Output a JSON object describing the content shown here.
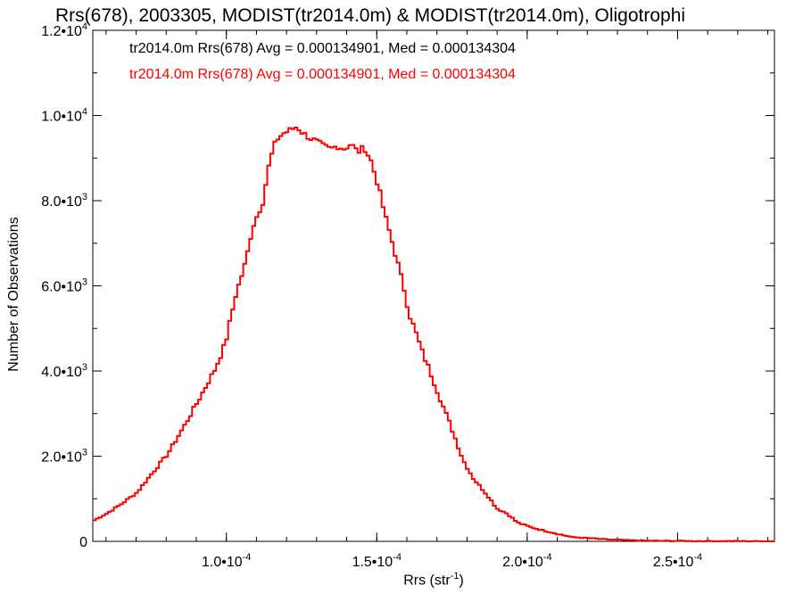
{
  "chart_data": {
    "type": "histogram",
    "title": "Rrs(678), 2003305, MODIST(tr2014.0m) & MODIST(tr2014.0m), Oligotrophi",
    "xlabel": "Rrs (str",
    "xlabel_sup": "-1",
    "xlabel_end": ")",
    "ylabel": "Number of Observations",
    "xlim": [
      5.56e-05,
      0.0002822
    ],
    "ylim": [
      0,
      12000
    ],
    "x_ticks": [
      {
        "value": 0.0001,
        "mant": "1.0•10",
        "exp": "-4"
      },
      {
        "value": 0.00015,
        "mant": "1.5•10",
        "exp": "-4"
      },
      {
        "value": 0.0002,
        "mant": "2.0•10",
        "exp": "-4"
      },
      {
        "value": 0.00025,
        "mant": "2.5•10",
        "exp": "-4"
      }
    ],
    "y_ticks": [
      {
        "value": 0,
        "mant": "0",
        "exp": ""
      },
      {
        "value": 2000,
        "mant": "2.0•10",
        "exp": "3"
      },
      {
        "value": 4000,
        "mant": "4.0•10",
        "exp": "3"
      },
      {
        "value": 6000,
        "mant": "6.0•10",
        "exp": "3"
      },
      {
        "value": 8000,
        "mant": "8.0•10",
        "exp": "3"
      },
      {
        "value": 10000,
        "mant": "1.0•10",
        "exp": "4"
      },
      {
        "value": 12000,
        "mant": "1.2•10",
        "exp": "4"
      }
    ],
    "legend": [
      {
        "text": "tr2014.0m Rrs(678) Avg = 0.000134901, Med = 0.000134304",
        "color": "#000000"
      },
      {
        "text": "tr2014.0m Rrs(678) Avg = 0.000134901, Med = 0.000134304",
        "color": "#ff0000"
      }
    ],
    "grid": false,
    "series": [
      {
        "color": "#ff0000",
        "bin_width": 1e-06,
        "x": [
          5.56e-05,
          5.67e-05,
          6.01e-05,
          6.46e-05,
          7.03e-05,
          7.48e-05,
          8.05e-05,
          8.61e-05,
          9.18e-05,
          9.63e-05,
          9.97e-05,
          0.0001031,
          0.0001065,
          0.0001087,
          0.0001121,
          0.0001144,
          0.0001166,
          0.0001189,
          0.0001211,
          0.0001234,
          0.0001256,
          0.0001279,
          0.0001301,
          0.0001324,
          0.0001347,
          0.0001369,
          0.0001392,
          0.0001414,
          0.0001437,
          0.0001459,
          0.0001482,
          0.0001493,
          0.0001505,
          0.0001527,
          0.000155,
          0.0001572,
          0.0001595,
          0.0001606,
          0.0001629,
          0.0001651,
          0.0001674,
          0.0001708,
          0.0001742,
          0.0001765,
          0.0001787,
          0.0001821,
          0.0001866,
          0.00019,
          0.0001934,
          0.0001968,
          0.0002013,
          0.0002058,
          0.0002104,
          0.0002149,
          0.0002205,
          0.0002262,
          0.0002318,
          0.0002375,
          0.0002431,
          0.0002488,
          0.0002544,
          0.0002601,
          0.0002657,
          0.0002714,
          0.000277,
          0.0002822
        ],
        "y": [
          480,
          520,
          650,
          850,
          1150,
          1550,
          2050,
          2720,
          3450,
          4050,
          4650,
          5780,
          6570,
          7380,
          7970,
          8920,
          9430,
          9580,
          9650,
          9740,
          9580,
          9470,
          9380,
          9270,
          9210,
          9290,
          9220,
          9340,
          9140,
          9250,
          8920,
          8640,
          8350,
          7670,
          7060,
          6470,
          5810,
          5380,
          4920,
          4450,
          4050,
          3400,
          2780,
          2340,
          1910,
          1480,
          1100,
          770,
          650,
          440,
          330,
          250,
          170,
          100,
          75,
          45,
          30,
          18,
          12,
          10,
          8,
          6,
          5,
          4,
          3,
          3
        ]
      }
    ]
  }
}
